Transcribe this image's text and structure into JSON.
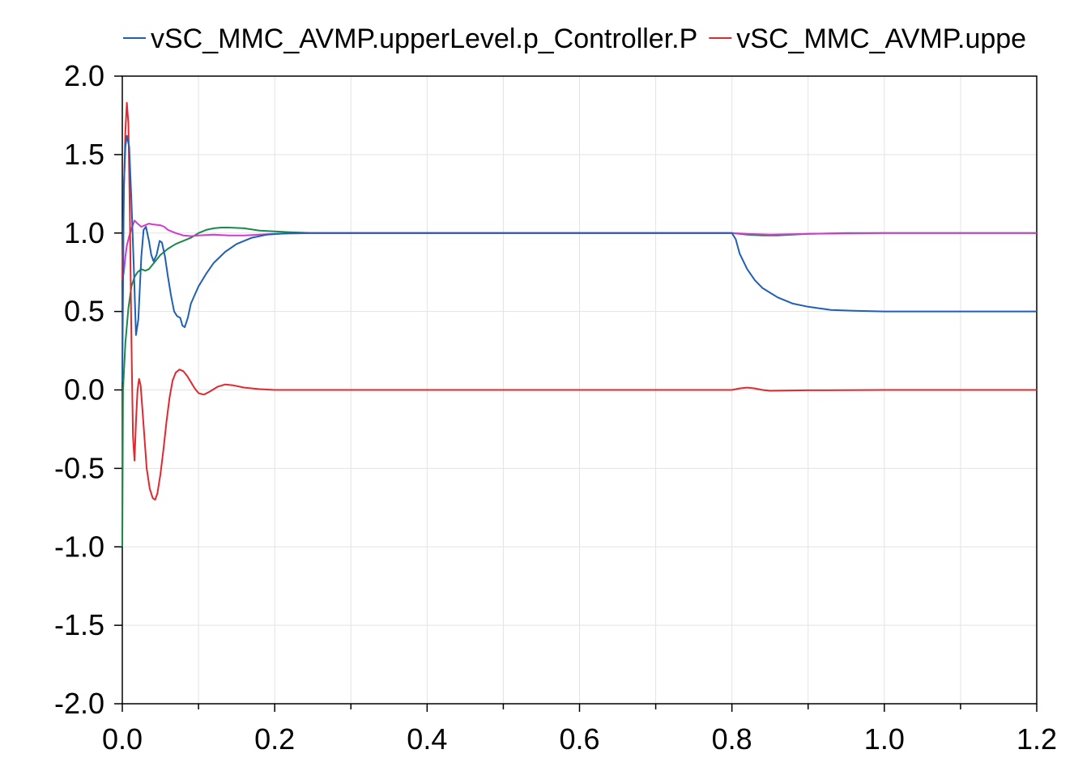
{
  "chart_data": {
    "type": "line",
    "title": "",
    "xlabel": "",
    "ylabel": "",
    "xlim": [
      0.0,
      1.2
    ],
    "ylim": [
      -2.0,
      2.0
    ],
    "grid": true,
    "legend_position": "top",
    "x_ticks": [
      "0.0",
      "0.2",
      "0.4",
      "0.6",
      "0.8",
      "1.0",
      "1.2"
    ],
    "y_ticks": [
      "2.0",
      "1.5",
      "1.0",
      "0.5",
      "0.0",
      "-0.5",
      "-1.0",
      "-1.5",
      "-2.0"
    ],
    "series": [
      {
        "name": "vSC_MMC_AVMP.upperLevel.p_Controller.P",
        "color": "#1f5fb4",
        "legend_visible": true,
        "points": [
          [
            0.0,
            0.05
          ],
          [
            0.002,
            1.3
          ],
          [
            0.004,
            1.55
          ],
          [
            0.006,
            1.62
          ],
          [
            0.009,
            1.55
          ],
          [
            0.012,
            1.2
          ],
          [
            0.015,
            0.8
          ],
          [
            0.018,
            0.35
          ],
          [
            0.021,
            0.45
          ],
          [
            0.025,
            0.85
          ],
          [
            0.028,
            1.02
          ],
          [
            0.031,
            1.04
          ],
          [
            0.035,
            0.95
          ],
          [
            0.038,
            0.86
          ],
          [
            0.041,
            0.82
          ],
          [
            0.045,
            0.86
          ],
          [
            0.049,
            0.95
          ],
          [
            0.052,
            0.94
          ],
          [
            0.056,
            0.85
          ],
          [
            0.06,
            0.72
          ],
          [
            0.064,
            0.6
          ],
          [
            0.068,
            0.5
          ],
          [
            0.072,
            0.47
          ],
          [
            0.076,
            0.46
          ],
          [
            0.079,
            0.41
          ],
          [
            0.082,
            0.4
          ],
          [
            0.086,
            0.46
          ],
          [
            0.09,
            0.55
          ],
          [
            0.1,
            0.66
          ],
          [
            0.11,
            0.74
          ],
          [
            0.12,
            0.81
          ],
          [
            0.135,
            0.88
          ],
          [
            0.15,
            0.93
          ],
          [
            0.17,
            0.97
          ],
          [
            0.19,
            0.99
          ],
          [
            0.22,
            1.0
          ],
          [
            0.3,
            1.0
          ],
          [
            0.5,
            1.0
          ],
          [
            0.7,
            1.0
          ],
          [
            0.8,
            1.0
          ],
          [
            0.805,
            0.96
          ],
          [
            0.81,
            0.87
          ],
          [
            0.82,
            0.77
          ],
          [
            0.83,
            0.7
          ],
          [
            0.84,
            0.65
          ],
          [
            0.86,
            0.59
          ],
          [
            0.88,
            0.55
          ],
          [
            0.9,
            0.53
          ],
          [
            0.93,
            0.51
          ],
          [
            0.96,
            0.505
          ],
          [
            1.0,
            0.5
          ],
          [
            1.1,
            0.5
          ],
          [
            1.2,
            0.5
          ]
        ]
      },
      {
        "name": "vSC_MMC_AVMP.uppe",
        "color": "#e0282e",
        "legend_visible": true,
        "points": [
          [
            0.0,
            0.7
          ],
          [
            0.002,
            1.25
          ],
          [
            0.004,
            1.65
          ],
          [
            0.006,
            1.83
          ],
          [
            0.008,
            1.7
          ],
          [
            0.01,
            1.1
          ],
          [
            0.012,
            0.3
          ],
          [
            0.014,
            -0.3
          ],
          [
            0.016,
            -0.45
          ],
          [
            0.018,
            -0.2
          ],
          [
            0.02,
            0.0
          ],
          [
            0.022,
            0.07
          ],
          [
            0.024,
            0.03
          ],
          [
            0.026,
            -0.1
          ],
          [
            0.029,
            -0.3
          ],
          [
            0.032,
            -0.5
          ],
          [
            0.036,
            -0.63
          ],
          [
            0.04,
            -0.69
          ],
          [
            0.043,
            -0.7
          ],
          [
            0.046,
            -0.66
          ],
          [
            0.05,
            -0.54
          ],
          [
            0.054,
            -0.38
          ],
          [
            0.058,
            -0.2
          ],
          [
            0.062,
            -0.05
          ],
          [
            0.066,
            0.06
          ],
          [
            0.07,
            0.11
          ],
          [
            0.075,
            0.13
          ],
          [
            0.08,
            0.12
          ],
          [
            0.085,
            0.09
          ],
          [
            0.09,
            0.05
          ],
          [
            0.095,
            0.01
          ],
          [
            0.1,
            -0.02
          ],
          [
            0.107,
            -0.03
          ],
          [
            0.115,
            -0.01
          ],
          [
            0.125,
            0.02
          ],
          [
            0.135,
            0.035
          ],
          [
            0.145,
            0.03
          ],
          [
            0.16,
            0.015
          ],
          [
            0.18,
            0.005
          ],
          [
            0.2,
            0.0
          ],
          [
            0.3,
            0.0
          ],
          [
            0.5,
            0.0
          ],
          [
            0.7,
            0.0
          ],
          [
            0.8,
            0.0
          ],
          [
            0.81,
            0.01
          ],
          [
            0.82,
            0.015
          ],
          [
            0.83,
            0.01
          ],
          [
            0.84,
            0.0
          ],
          [
            0.85,
            -0.005
          ],
          [
            0.9,
            -0.002
          ],
          [
            1.0,
            0.0
          ],
          [
            1.2,
            0.0
          ]
        ]
      },
      {
        "name": "",
        "color": "#1a8a4a",
        "legend_visible": false,
        "points": [
          [
            0.0,
            -1.0
          ],
          [
            0.001,
            0.0
          ],
          [
            0.004,
            0.3
          ],
          [
            0.008,
            0.52
          ],
          [
            0.012,
            0.66
          ],
          [
            0.016,
            0.72
          ],
          [
            0.02,
            0.75
          ],
          [
            0.025,
            0.77
          ],
          [
            0.03,
            0.76
          ],
          [
            0.035,
            0.77
          ],
          [
            0.04,
            0.8
          ],
          [
            0.05,
            0.86
          ],
          [
            0.06,
            0.9
          ],
          [
            0.07,
            0.93
          ],
          [
            0.08,
            0.95
          ],
          [
            0.09,
            0.97
          ],
          [
            0.1,
            1.0
          ],
          [
            0.11,
            1.02
          ],
          [
            0.12,
            1.03
          ],
          [
            0.13,
            1.035
          ],
          [
            0.14,
            1.035
          ],
          [
            0.16,
            1.03
          ],
          [
            0.18,
            1.015
          ],
          [
            0.2,
            1.01
          ],
          [
            0.22,
            1.005
          ],
          [
            0.25,
            1.0
          ],
          [
            0.3,
            1.0
          ],
          [
            0.5,
            1.0
          ],
          [
            0.7,
            1.0
          ],
          [
            0.8,
            1.0
          ],
          [
            0.82,
            0.99
          ],
          [
            0.84,
            0.985
          ],
          [
            0.86,
            0.985
          ],
          [
            0.88,
            0.99
          ],
          [
            0.9,
            0.995
          ],
          [
            0.95,
            1.0
          ],
          [
            1.0,
            1.0
          ],
          [
            1.2,
            1.0
          ]
        ]
      },
      {
        "name": "",
        "color": "#d33ad0",
        "legend_visible": false,
        "points": [
          [
            0.0,
            0.7
          ],
          [
            0.002,
            0.75
          ],
          [
            0.004,
            0.85
          ],
          [
            0.006,
            0.92
          ],
          [
            0.009,
            0.98
          ],
          [
            0.013,
            1.04
          ],
          [
            0.016,
            1.08
          ],
          [
            0.02,
            1.06
          ],
          [
            0.025,
            1.04
          ],
          [
            0.03,
            1.05
          ],
          [
            0.035,
            1.06
          ],
          [
            0.04,
            1.055
          ],
          [
            0.05,
            1.05
          ],
          [
            0.055,
            1.04
          ],
          [
            0.06,
            1.02
          ],
          [
            0.07,
            1.0
          ],
          [
            0.08,
            0.985
          ],
          [
            0.09,
            0.98
          ],
          [
            0.1,
            0.985
          ],
          [
            0.12,
            0.99
          ],
          [
            0.14,
            0.985
          ],
          [
            0.16,
            0.985
          ],
          [
            0.18,
            0.99
          ],
          [
            0.2,
            0.995
          ],
          [
            0.25,
            1.0
          ],
          [
            0.3,
            1.0
          ],
          [
            0.5,
            1.0
          ],
          [
            0.7,
            1.0
          ],
          [
            0.8,
            1.0
          ],
          [
            0.82,
            0.995
          ],
          [
            0.85,
            0.99
          ],
          [
            0.9,
            0.995
          ],
          [
            1.0,
            1.0
          ],
          [
            1.2,
            1.0
          ]
        ]
      }
    ]
  }
}
